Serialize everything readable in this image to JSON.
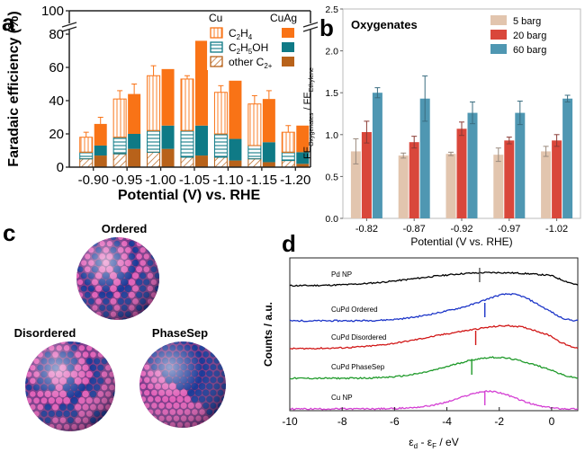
{
  "panel_letters": {
    "a": "a",
    "b": "b",
    "c": "c",
    "d": "d"
  },
  "colors": {
    "c2h4": "#f97316",
    "c2h5oh": "#0f7a86",
    "other": "#b8621a",
    "b_5barg": "#e2c5ae",
    "b_20barg": "#d9473b",
    "b_60barg": "#4f97b2",
    "pd_np": "#000000",
    "cupd_ordered": "#1c35c8",
    "cupd_disordered": "#d11717",
    "cupd_phasesep": "#1f9a2a",
    "cu_np": "#d43fd3",
    "atom_pink": "#e060b8",
    "atom_blue": "#1c3a99"
  },
  "chart_data": [
    {
      "panel": "a",
      "type": "bar",
      "xlabel": "Potential (V) vs. RHE",
      "ylabel": "Faradaic efficiency (%)",
      "ylim": [
        0,
        100
      ],
      "y_axis_break": [
        80,
        100
      ],
      "yticks": [
        "0",
        "20",
        "40",
        "60",
        "80",
        "100"
      ],
      "categories": [
        "-0.90",
        "-0.95",
        "-1.00",
        "-1.05",
        "-1.10",
        "-1.15",
        "-1.20"
      ],
      "legend": {
        "group_cu": "Cu",
        "group_cuag": "CuAg",
        "series": [
          {
            "label": "C",
            "sub": "2",
            "label_after": "H",
            "sub2": "4",
            "label_end": ""
          },
          {
            "label": "C",
            "sub": "2",
            "label_after": "H",
            "sub2": "5",
            "label_end": "OH"
          },
          {
            "label": "other C",
            "sub": "2+",
            "label_after": "",
            "sub2": "",
            "label_end": ""
          }
        ]
      },
      "stacks": [
        {
          "name": "Cu",
          "components": [
            "other C2+",
            "C2H5OH",
            "C2H4"
          ],
          "values": [
            [
              5,
              4,
              9
            ],
            [
              8,
              10,
              23
            ],
            [
              9,
              13,
              33
            ],
            [
              6,
              16,
              31
            ],
            [
              6,
              14,
              25
            ],
            [
              5,
              8,
              25
            ],
            [
              4,
              5,
              12
            ]
          ],
          "error": [
            3,
            5,
            6,
            2,
            4,
            5,
            4
          ]
        },
        {
          "name": "CuAg",
          "components": [
            "other C2+",
            "C2H5OH",
            "C2H4"
          ],
          "values": [
            [
              7,
              6,
              13
            ],
            [
              11,
              9,
              24
            ],
            [
              11,
              14,
              34
            ],
            [
              7,
              18,
              51
            ],
            [
              4,
              13,
              35
            ],
            [
              3,
              12,
              26
            ],
            [
              2,
              7,
              16
            ]
          ],
          "error": [
            4,
            6,
            0,
            0,
            0,
            5,
            0
          ]
        }
      ]
    },
    {
      "panel": "b",
      "type": "bar",
      "title": "Oxygenates",
      "ylabel_main": "FE",
      "ylabel_sub1": "Oxygenates",
      "ylabel_mid": " / FE",
      "ylabel_sub2": "Ethylene",
      "xlabel": "Potential (V vs. RHE)",
      "ylim": [
        0,
        2.5
      ],
      "yticks": [
        "0.0",
        "0.5",
        "1.0",
        "1.5",
        "2.0",
        "2.5"
      ],
      "categories": [
        "-0.82",
        "-0.87",
        "-0.92",
        "-0.97",
        "-1.02"
      ],
      "series": [
        {
          "name": "5 barg",
          "values": [
            0.8,
            0.75,
            0.77,
            0.76,
            0.8
          ],
          "err": [
            0.15,
            0.03,
            0.02,
            0.08,
            0.06
          ]
        },
        {
          "name": "20 barg",
          "values": [
            1.03,
            0.91,
            1.07,
            0.93,
            0.93
          ],
          "err": [
            0.13,
            0.07,
            0.08,
            0.04,
            0.07
          ]
        },
        {
          "name": "60 barg",
          "values": [
            1.5,
            1.43,
            1.26,
            1.26,
            1.43
          ],
          "err": [
            0.06,
            0.27,
            0.13,
            0.14,
            0.04
          ]
        }
      ]
    },
    {
      "panel": "d",
      "type": "line",
      "xlabel": "ε_d - ε_F / eV",
      "xlabel_main": "ε",
      "xlabel_sub1": "d",
      "xlabel_mid": " - ε",
      "xlabel_sub2": "F",
      "xlabel_end": " / eV",
      "ylabel": "Counts / a.u.",
      "xlim": [
        -10,
        1
      ],
      "xticks": [
        "-10",
        "-8",
        "-6",
        "-4",
        "-2",
        "0"
      ],
      "series": [
        {
          "name": "Pd NP",
          "d_band_center": -2.75
        },
        {
          "name": "CuPd Ordered",
          "d_band_center": -2.55
        },
        {
          "name": "CuPd Disordered",
          "d_band_center": -2.9
        },
        {
          "name": "CuPd PhaseSep",
          "d_band_center": -3.05
        },
        {
          "name": "Cu NP",
          "d_band_center": -2.55
        }
      ]
    }
  ],
  "panel_c": {
    "ordered": "Ordered",
    "disordered": "Disordered",
    "phasesep": "PhaseSep"
  }
}
